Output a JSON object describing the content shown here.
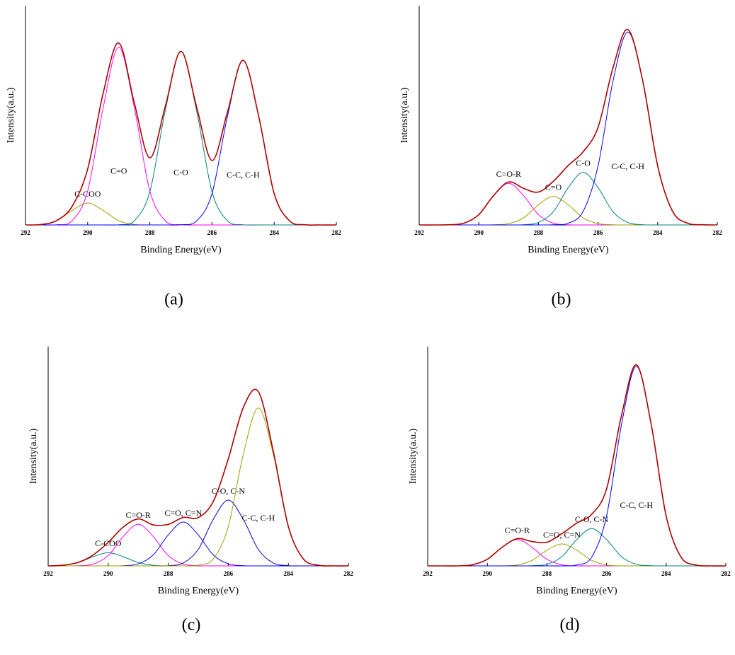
{
  "chart_data": [
    {
      "type": "line",
      "label": "(a)",
      "xlabel": "Binding Energy(eV)",
      "ylabel": "Intensity(a.u.)",
      "x": [
        292,
        291.5,
        291,
        290.5,
        290,
        289.5,
        289,
        288.5,
        288,
        287.5,
        287,
        286.5,
        286,
        285.5,
        285,
        284.5,
        284,
        283.5,
        283,
        282.5,
        282
      ],
      "xlim": [
        292,
        282
      ],
      "xticks": [
        292,
        290,
        288,
        286,
        284,
        282
      ],
      "ylim": [
        0,
        100
      ],
      "series": [
        {
          "name": "C-COO",
          "color": "#a0a000",
          "values": [
            0,
            0.2,
            1.9,
            6.6,
            10,
            6.6,
            1.9,
            0.2,
            0,
            0,
            0,
            0,
            0,
            0,
            0,
            0,
            0,
            0,
            0,
            0,
            0
          ]
        },
        {
          "name": "C=O",
          "color": "#ff00ff",
          "values": [
            0,
            0,
            0.1,
            1.9,
            15.5,
            53.6,
            81,
            53.6,
            15.5,
            1.9,
            0.1,
            0,
            0,
            0,
            0,
            0,
            0,
            0,
            0,
            0,
            0
          ]
        },
        {
          "name": "C-O",
          "color": "#008080",
          "values": [
            0,
            0,
            0,
            0,
            0,
            0,
            0.1,
            1.9,
            15.1,
            52.3,
            79,
            52.3,
            15.1,
            1.9,
            0.1,
            0,
            0,
            0,
            0,
            0,
            0
          ]
        },
        {
          "name": "C-C, C-H",
          "color": "#0000ff",
          "values": [
            0,
            0,
            0,
            0,
            0,
            0,
            0,
            0,
            0,
            0,
            0.1,
            1.8,
            14.3,
            49.7,
            75,
            49.7,
            14.3,
            1.8,
            0.1,
            0,
            0
          ]
        },
        {
          "color": "#b00000",
          "values": [
            0,
            0.2,
            2.0,
            8.5,
            25.5,
            60.2,
            83.0,
            55.7,
            30.6,
            54.2,
            79.2,
            54.1,
            29.4,
            51.6,
            75.1,
            49.7,
            14.3,
            1.8,
            0.1,
            0,
            0
          ]
        }
      ]
    },
    {
      "type": "line",
      "label": "(b)",
      "xlabel": "Binding Energy(eV)",
      "ylabel": "Intensity(a.u.)",
      "x": [
        292,
        291.5,
        291,
        290.5,
        290,
        289.5,
        289,
        288.5,
        288,
        287.5,
        287,
        286.5,
        286,
        285.5,
        285,
        284.5,
        284,
        283.5,
        283,
        282.5,
        282
      ],
      "xlim": [
        292,
        282
      ],
      "xticks": [
        292,
        290,
        288,
        286,
        284,
        282
      ],
      "ylim": [
        0,
        100
      ],
      "series": [
        {
          "name": "C=O-R",
          "color": "#ff00ff",
          "values": [
            0,
            0,
            0.1,
            0.8,
            4.7,
            13.4,
            19,
            13.4,
            4.7,
            0.8,
            0.1,
            0,
            0,
            0,
            0,
            0,
            0,
            0,
            0,
            0,
            0
          ]
        },
        {
          "name": "C=O",
          "color": "#a0a000",
          "values": [
            0,
            0,
            0,
            0,
            0,
            0.1,
            0.6,
            3.2,
            9.2,
            13,
            9.2,
            3.2,
            0.6,
            0.1,
            0,
            0,
            0,
            0,
            0,
            0,
            0
          ]
        },
        {
          "name": "C-O",
          "color": "#008080",
          "values": [
            0,
            0,
            0,
            0,
            0,
            0,
            0,
            0.1,
            1.1,
            6.0,
            17,
            24,
            17,
            6.0,
            1.1,
            0.1,
            0,
            0,
            0,
            0,
            0
          ]
        },
        {
          "name": "C-C, C-H",
          "color": "#0000ff",
          "values": [
            0,
            0,
            0,
            0,
            0,
            0,
            0,
            0,
            0,
            0.1,
            0.8,
            6.2,
            26.9,
            65.5,
            88,
            65.5,
            26.9,
            6.2,
            0.8,
            0.1,
            0
          ]
        },
        {
          "color": "#b00000",
          "values": [
            0,
            0,
            0.1,
            0.8,
            4.7,
            13.5,
            19.6,
            16.7,
            15.0,
            19.9,
            27.1,
            33.4,
            44.5,
            71.6,
            89.1,
            65.6,
            26.9,
            6.2,
            0.8,
            0.1,
            0
          ]
        }
      ]
    },
    {
      "type": "line",
      "label": "(c)",
      "xlabel": "Binding Energy(eV)",
      "ylabel": "Intensity(a.u.)",
      "x": [
        292,
        291.5,
        291,
        290.5,
        290,
        289.5,
        289,
        288.5,
        288,
        287.5,
        287,
        286.5,
        286,
        285.5,
        285,
        284.5,
        284,
        283.5,
        283,
        282.5,
        282
      ],
      "xlim": [
        292,
        282
      ],
      "xticks": [
        292,
        290,
        288,
        286,
        284,
        282
      ],
      "ylim": [
        0,
        100
      ],
      "series": [
        {
          "name": "C-COO",
          "color": "#008080",
          "values": [
            0,
            0.3,
            1.5,
            4.2,
            6,
            4.2,
            1.5,
            0.3,
            0,
            0,
            0,
            0,
            0,
            0,
            0,
            0,
            0,
            0,
            0,
            0,
            0
          ]
        },
        {
          "name": "C=O-R",
          "color": "#ff00ff",
          "values": [
            0,
            0,
            0.1,
            0.8,
            4.7,
            13.4,
            19,
            13.4,
            4.7,
            0.8,
            0.1,
            0,
            0,
            0,
            0,
            0,
            0,
            0,
            0,
            0,
            0
          ]
        },
        {
          "name": "C=O, C=N",
          "color": "#0000ff",
          "values": [
            0,
            0,
            0,
            0,
            0,
            0.1,
            0.9,
            5.0,
            14.1,
            20,
            14.1,
            5.0,
            0.9,
            0.1,
            0,
            0,
            0,
            0,
            0,
            0,
            0
          ]
        },
        {
          "name": "C-O, C-N",
          "color": "#0000cc",
          "values": [
            0,
            0,
            0,
            0,
            0,
            0,
            0,
            0,
            0.1,
            1.3,
            7.5,
            21.2,
            30,
            21.2,
            7.5,
            1.3,
            0.1,
            0,
            0,
            0,
            0
          ]
        },
        {
          "name": "C-C, C-H",
          "color": "#a0a000",
          "values": [
            0,
            0,
            0,
            0,
            0,
            0,
            0,
            0,
            0,
            0,
            0.3,
            3.2,
            17.9,
            50.9,
            72,
            50.9,
            17.9,
            3.2,
            0.3,
            0,
            0
          ]
        },
        {
          "color": "#b00000",
          "values": [
            0,
            0.3,
            1.6,
            5.0,
            10.7,
            17.7,
            21.4,
            18.7,
            18.9,
            22.1,
            22.0,
            29.4,
            48.8,
            72.2,
            79.5,
            52.2,
            18.0,
            3.2,
            0.3,
            0,
            0
          ]
        }
      ]
    },
    {
      "type": "line",
      "label": "(d)",
      "xlabel": "Binding Energy(eV)",
      "ylabel": "Intensity(a.u.)",
      "x": [
        292,
        291.5,
        291,
        290.5,
        290,
        289.5,
        289,
        288.5,
        288,
        287.5,
        287,
        286.5,
        286,
        285.5,
        285,
        284.5,
        284,
        283.5,
        283,
        282.5,
        282
      ],
      "xlim": [
        292,
        282
      ],
      "xticks": [
        292,
        290,
        288,
        286,
        284,
        282
      ],
      "ylim": [
        0,
        100
      ],
      "series": [
        {
          "name": "C=O-R",
          "color": "#ff00ff",
          "values": [
            0,
            0,
            0,
            0.5,
            3.0,
            8.5,
            12,
            8.5,
            3.0,
            0.5,
            0,
            0,
            0,
            0,
            0,
            0,
            0,
            0,
            0,
            0,
            0
          ]
        },
        {
          "name": "C=O, C=N",
          "color": "#a0a000",
          "values": [
            0,
            0,
            0,
            0,
            0,
            0,
            0.4,
            2.5,
            7.1,
            10,
            7.1,
            2.5,
            0.4,
            0,
            0,
            0,
            0,
            0,
            0,
            0,
            0
          ]
        },
        {
          "name": "C-O, C-N",
          "color": "#008080",
          "values": [
            0,
            0,
            0,
            0,
            0,
            0,
            0,
            0.1,
            0.7,
            4.2,
            12,
            17,
            12,
            4.2,
            0.7,
            0.1,
            0,
            0,
            0,
            0,
            0
          ]
        },
        {
          "name": "C-C, C-H",
          "color": "#0000ff",
          "values": [
            0,
            0,
            0,
            0,
            0,
            0,
            0,
            0,
            0,
            0,
            0.4,
            4.0,
            22.7,
            64.3,
            91,
            64.3,
            22.7,
            4.0,
            0.4,
            0,
            0
          ]
        },
        {
          "color": "#b00000",
          "values": [
            0,
            0,
            0,
            0.5,
            3.0,
            8.5,
            12.4,
            11.1,
            10.8,
            14.7,
            19.5,
            23.5,
            35.1,
            68.5,
            91.7,
            64.4,
            22.7,
            4.0,
            0.4,
            0,
            0
          ]
        }
      ]
    }
  ]
}
